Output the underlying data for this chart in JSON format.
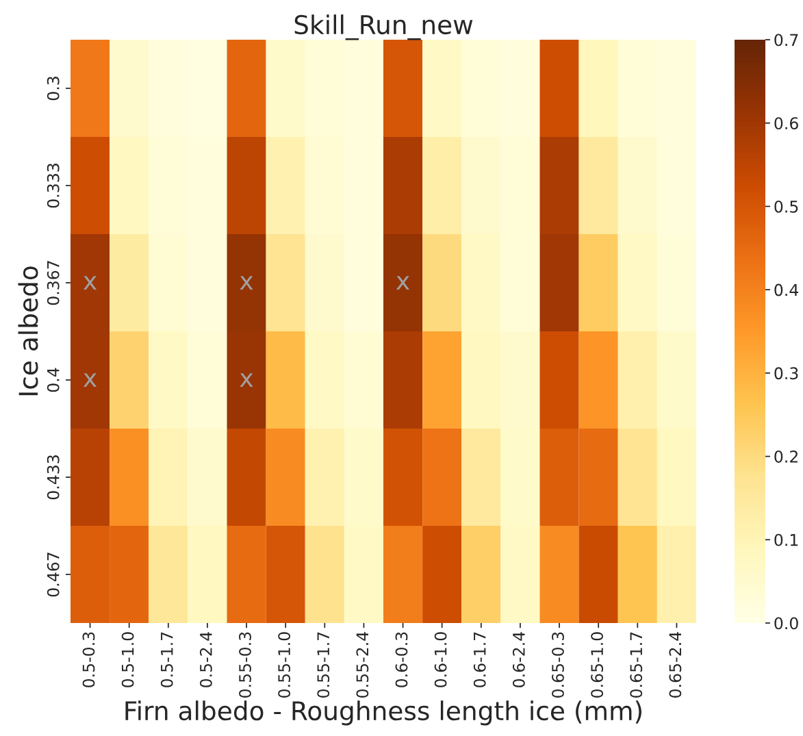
{
  "chart_data": {
    "type": "heatmap",
    "title": "Skill_Run_new",
    "xlabel": "Firn albedo - Roughness length ice (mm)",
    "ylabel": "Ice albedo",
    "categories": [
      "0.5-0.3",
      "0.5-1.0",
      "0.5-1.7",
      "0.5-2.4",
      "0.55-0.3",
      "0.55-1.0",
      "0.55-1.7",
      "0.55-2.4",
      "0.6-0.3",
      "0.6-1.0",
      "0.6-1.7",
      "0.6-2.4",
      "0.65-0.3",
      "0.65-1.0",
      "0.65-1.7",
      "0.65-2.4"
    ],
    "y_categories": [
      "0.3",
      "0.333",
      "0.367",
      "0.4",
      "0.433",
      "0.467"
    ],
    "cells": [
      [
        0.42,
        0.05,
        0.02,
        0.01,
        0.46,
        0.06,
        0.03,
        0.02,
        0.5,
        0.07,
        0.03,
        0.02,
        0.52,
        0.09,
        0.03,
        0.02
      ],
      [
        0.52,
        0.08,
        0.03,
        0.02,
        0.55,
        0.11,
        0.04,
        0.02,
        0.58,
        0.13,
        0.05,
        0.03,
        0.58,
        0.15,
        0.05,
        0.02
      ],
      [
        0.6,
        0.14,
        0.04,
        0.02,
        0.62,
        0.17,
        0.05,
        0.02,
        0.62,
        0.2,
        0.07,
        0.03,
        0.6,
        0.24,
        0.07,
        0.03
      ],
      [
        0.6,
        0.22,
        0.07,
        0.03,
        0.61,
        0.28,
        0.07,
        0.04,
        0.58,
        0.33,
        0.08,
        0.05,
        0.52,
        0.36,
        0.12,
        0.06
      ],
      [
        0.56,
        0.37,
        0.1,
        0.05,
        0.54,
        0.38,
        0.11,
        0.06,
        0.51,
        0.43,
        0.15,
        0.06,
        0.48,
        0.45,
        0.17,
        0.08
      ],
      [
        0.48,
        0.46,
        0.16,
        0.08,
        0.45,
        0.5,
        0.18,
        0.07,
        0.41,
        0.52,
        0.23,
        0.07,
        0.38,
        0.53,
        0.26,
        0.12
      ]
    ],
    "cell_labels": [
      [
        null,
        null,
        null,
        null,
        null,
        null,
        null,
        null,
        null,
        null,
        null,
        null,
        null,
        null,
        null,
        null
      ],
      [
        null,
        null,
        null,
        null,
        null,
        null,
        null,
        null,
        null,
        null,
        null,
        null,
        null,
        null,
        null,
        null
      ],
      [
        "x",
        null,
        null,
        null,
        "x",
        null,
        null,
        null,
        "x",
        null,
        null,
        null,
        null,
        null,
        null,
        null
      ],
      [
        "x",
        null,
        null,
        null,
        "x",
        null,
        null,
        null,
        null,
        null,
        null,
        null,
        null,
        null,
        null,
        null
      ],
      [
        null,
        null,
        null,
        null,
        null,
        null,
        null,
        null,
        null,
        null,
        null,
        null,
        null,
        null,
        null,
        null
      ],
      [
        null,
        null,
        null,
        null,
        null,
        null,
        null,
        null,
        null,
        null,
        null,
        null,
        null,
        null,
        null,
        null
      ]
    ],
    "clim": [
      0,
      0.7
    ],
    "cticks": [
      {
        "value": 0,
        "label": "0.0"
      },
      {
        "value": 0.1,
        "label": "0.1"
      },
      {
        "value": 0.2,
        "label": "0.2"
      },
      {
        "value": 0.3,
        "label": "0.3"
      },
      {
        "value": 0.4,
        "label": "0.4"
      },
      {
        "value": 0.5,
        "label": "0.5"
      },
      {
        "value": 0.6,
        "label": "0.6"
      },
      {
        "value": 0.7,
        "label": "0.7"
      }
    ]
  }
}
